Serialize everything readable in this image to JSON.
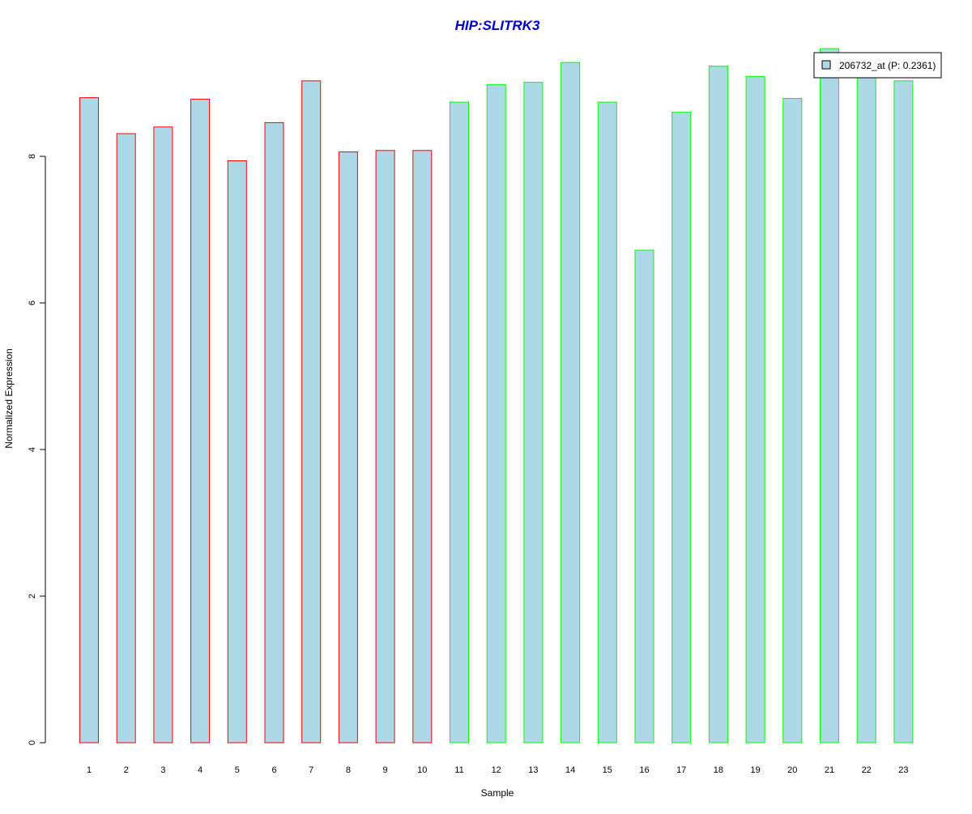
{
  "chart_data": {
    "type": "bar",
    "title": "HIP:SLITRK3",
    "xlabel": "Sample",
    "ylabel": "Normalized Expression",
    "categories": [
      "1",
      "2",
      "3",
      "4",
      "5",
      "6",
      "7",
      "8",
      "9",
      "10",
      "11",
      "12",
      "13",
      "14",
      "15",
      "16",
      "17",
      "18",
      "19",
      "20",
      "21",
      "22",
      "23"
    ],
    "series": [
      {
        "name": "206732_at (P: 0.2361)",
        "values": [
          8.8,
          8.31,
          8.4,
          8.78,
          7.94,
          8.46,
          9.03,
          8.06,
          8.08,
          8.08,
          8.74,
          8.98,
          9.01,
          9.28,
          8.74,
          6.72,
          8.6,
          9.23,
          9.09,
          8.79,
          9.47,
          9.12,
          9.03
        ]
      }
    ],
    "groups": [
      {
        "samples": [
          1,
          10
        ],
        "border_color": "#ff0000"
      },
      {
        "samples": [
          11,
          23
        ],
        "border_color": "#00ff00"
      }
    ],
    "ylim": [
      0,
      9.47
    ],
    "yticks": [
      0,
      2,
      4,
      6,
      8
    ],
    "bar_fill": "#add8e6",
    "title_color": "#0000cc",
    "legend_position": "top-right",
    "grid": false
  }
}
